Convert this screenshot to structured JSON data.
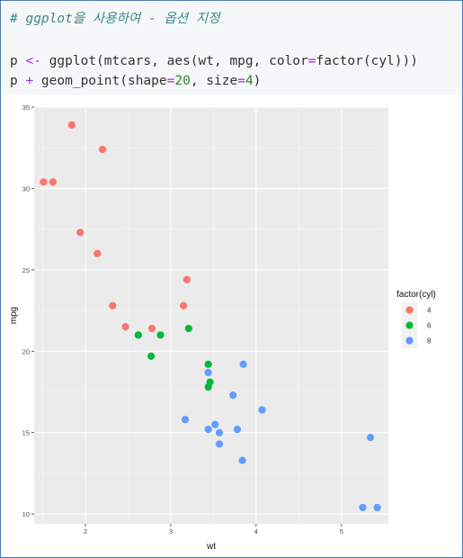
{
  "code": {
    "comment": "# ggplot을 사용하여 - 옵션 지정",
    "line1": [
      {
        "t": "p ",
        "c": "plain"
      },
      {
        "t": "<-",
        "c": "op"
      },
      {
        "t": " ggplot(mtcars, aes(wt, mpg, color",
        "c": "plain"
      },
      {
        "t": "=",
        "c": "op"
      },
      {
        "t": "factor(cyl)))",
        "c": "plain"
      }
    ],
    "line2": [
      {
        "t": "p ",
        "c": "plain"
      },
      {
        "t": "+",
        "c": "op"
      },
      {
        "t": " geom_point(shape",
        "c": "plain"
      },
      {
        "t": "=",
        "c": "op"
      },
      {
        "t": "20",
        "c": "num"
      },
      {
        "t": ", size",
        "c": "plain"
      },
      {
        "t": "=",
        "c": "op"
      },
      {
        "t": "4",
        "c": "num"
      },
      {
        "t": ")",
        "c": "plain"
      }
    ]
  },
  "chart_data": {
    "type": "scatter",
    "xlabel": "wt",
    "ylabel": "mpg",
    "xlim": [
      1.4,
      5.55
    ],
    "ylim": [
      9.4,
      35.0
    ],
    "x_ticks": [
      2,
      3,
      4,
      5
    ],
    "y_ticks": [
      10,
      15,
      20,
      25,
      30,
      35
    ],
    "grid": true,
    "legend": {
      "title": "factor(cyl)",
      "position": "right"
    },
    "series": [
      {
        "name": "4",
        "color": "#F8766D",
        "points": [
          [
            1.51,
            30.4
          ],
          [
            1.62,
            30.4
          ],
          [
            1.84,
            33.9
          ],
          [
            1.94,
            27.3
          ],
          [
            2.14,
            26.0
          ],
          [
            2.2,
            32.4
          ],
          [
            2.32,
            22.8
          ],
          [
            2.47,
            21.5
          ],
          [
            2.78,
            21.4
          ],
          [
            3.15,
            22.8
          ],
          [
            3.19,
            24.4
          ]
        ]
      },
      {
        "name": "6",
        "color": "#00BA38",
        "points": [
          [
            2.62,
            21.0
          ],
          [
            2.77,
            19.7
          ],
          [
            2.88,
            21.0
          ],
          [
            3.21,
            21.4
          ],
          [
            3.44,
            19.2
          ],
          [
            3.44,
            17.8
          ],
          [
            3.46,
            18.1
          ]
        ]
      },
      {
        "name": "8",
        "color": "#619CFF",
        "points": [
          [
            3.17,
            15.8
          ],
          [
            3.44,
            18.7
          ],
          [
            3.44,
            15.2
          ],
          [
            3.52,
            15.5
          ],
          [
            3.57,
            15.0
          ],
          [
            3.57,
            14.3
          ],
          [
            3.73,
            17.3
          ],
          [
            3.78,
            15.2
          ],
          [
            3.84,
            13.3
          ],
          [
            3.85,
            19.2
          ],
          [
            4.07,
            16.4
          ],
          [
            5.25,
            10.4
          ],
          [
            5.34,
            14.7
          ],
          [
            5.42,
            10.4
          ]
        ]
      }
    ]
  }
}
